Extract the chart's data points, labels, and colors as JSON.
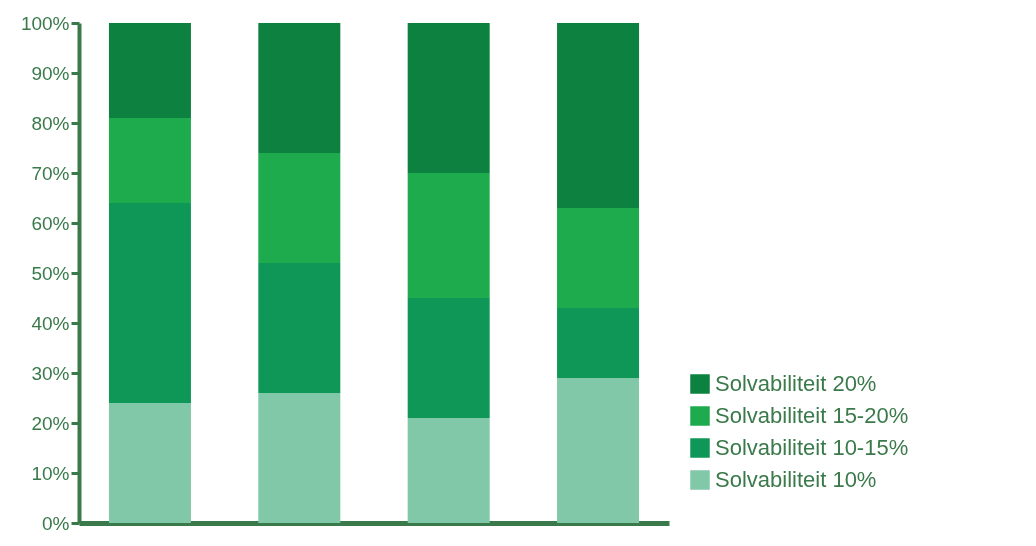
{
  "chart_data": {
    "type": "bar",
    "stacked": true,
    "categories": [
      null,
      null,
      null,
      null
    ],
    "series": [
      {
        "name": "Solvabiliteit  10%",
        "color": "#80c8a7",
        "values": [
          24,
          26,
          21,
          29
        ]
      },
      {
        "name": "Solvabiliteit 10-15%",
        "color": "#0f9757",
        "values": [
          40,
          26,
          24,
          14
        ]
      },
      {
        "name": "Solvabiliteit 15-20%",
        "color": "#1eab4e",
        "values": [
          17,
          22,
          25,
          20
        ]
      },
      {
        "name": "Solvabiliteit  20%",
        "color": "#0c8140",
        "values": [
          19,
          26,
          30,
          37
        ]
      }
    ],
    "ylim": [
      0,
      100
    ],
    "yticks": [
      {
        "value": 0,
        "label": "0%"
      },
      {
        "value": 10,
        "label": "10%"
      },
      {
        "value": 20,
        "label": "20%"
      },
      {
        "value": 30,
        "label": "30%"
      },
      {
        "value": 40,
        "label": "40%"
      },
      {
        "value": 50,
        "label": "50%"
      },
      {
        "value": 60,
        "label": "60%"
      },
      {
        "value": 70,
        "label": "70%"
      },
      {
        "value": 80,
        "label": "80%"
      },
      {
        "value": 90,
        "label": "90%"
      },
      {
        "value": 100,
        "label": "100%"
      }
    ],
    "grid": false,
    "legend": "bottom right"
  }
}
